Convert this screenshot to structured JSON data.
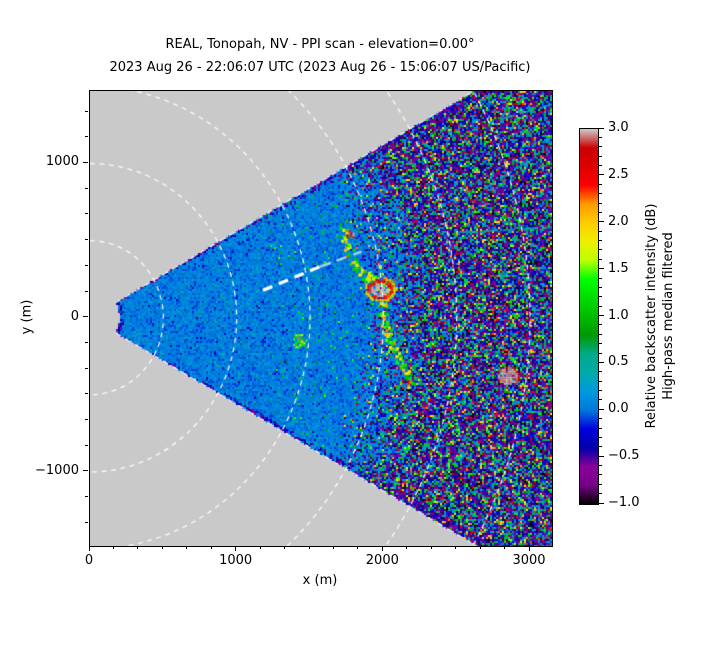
{
  "title": {
    "line1": "REAL, Tonopah, NV - PPI scan - elevation=0.00°",
    "line2": "2023 Aug 26 - 22:06:07 UTC (2023 Aug 26 - 15:06:07 US/Pacific)"
  },
  "chart_data": {
    "type": "heatmap",
    "subtype": "lidar-ppi-sector-scan",
    "xlabel": "x (m)",
    "ylabel": "y (m)",
    "xlim": [
      0,
      3150
    ],
    "ylim": [
      -1480,
      1470
    ],
    "x_ticks": [
      0,
      1000,
      2000,
      3000
    ],
    "x_tick_labels": [
      "0",
      "1000",
      "2000",
      "3000"
    ],
    "y_ticks": [
      1000,
      0,
      -1000
    ],
    "y_tick_labels": [
      "1000",
      "0",
      "−1000"
    ],
    "minor_tick_step_m": 166.6667,
    "plot_bg_color": "#c9c9c9",
    "sector": {
      "center_m": [
        0,
        0
      ],
      "azimuth_deg": [
        -29.3,
        29.3
      ],
      "min_range_m": 200,
      "max_range_m": 3500
    },
    "range_rings_m": [
      500,
      1000,
      1500,
      2000,
      2500,
      3000
    ],
    "ring_style": {
      "color": "#ffffff",
      "dash": [
        5,
        4.5
      ],
      "width": 1.3
    },
    "noise_model": {
      "clean_mean_db": 0.04,
      "clean_sd_db": 0.12,
      "speck_cyan_prob": 0.045,
      "speck_cyan_db": [
        0.28,
        0.58
      ],
      "noise_onset_range_m": 1830,
      "noise_full_range_m": 2350
    },
    "features": [
      {
        "type": "dashed-annotation",
        "from_m": [
          1180,
          178
        ],
        "to_m": [
          1565,
          330
        ],
        "to2_m": [
          1850,
          428
        ],
        "color": "#ffffff"
      },
      {
        "type": "plume-path",
        "points_m": [
          [
            1720,
            620
          ],
          [
            1745,
            480
          ],
          [
            1790,
            360
          ],
          [
            1868,
            282
          ],
          [
            1955,
            235
          ],
          [
            2020,
            168
          ],
          [
            1992,
            60
          ],
          [
            2012,
            -60
          ],
          [
            2062,
            -180
          ],
          [
            2130,
            -320
          ],
          [
            2195,
            -430
          ]
        ],
        "width_m": 55,
        "value_db": [
          0.9,
          2.1
        ]
      },
      {
        "type": "bright-core",
        "center_m": [
          1975,
          190
        ],
        "rx_m": 88,
        "ry_m": 66,
        "core_db": 3.0,
        "edge_db": [
          2.3,
          2.9
        ],
        "ring_db": [
          1.6,
          2.2
        ]
      },
      {
        "type": "spot",
        "center_m": [
          1765,
          545
        ],
        "r_m": 30,
        "value_db": [
          2.2,
          3.0
        ]
      },
      {
        "type": "blob",
        "center_m": [
          1420,
          -150
        ],
        "r_m": 48,
        "value_db": [
          1.1,
          1.8
        ],
        "highlight_db": [
          2.1,
          2.9
        ]
      },
      {
        "type": "white-blob",
        "center_m": [
          2845,
          -372
        ],
        "rx_m": 78,
        "ry_m": 62,
        "value_db": [
          2.9,
          3.0
        ]
      },
      {
        "type": "streak",
        "from_m": [
          2540,
          555
        ],
        "to_m": [
          2900,
          572
        ],
        "value_db": 0.33
      },
      {
        "type": "streak",
        "from_m": [
          2950,
          575
        ],
        "to_m": [
          3150,
          585
        ],
        "value_db": 0.33
      },
      {
        "type": "streak",
        "from_m": [
          2800,
          1285
        ],
        "to_m": [
          3210,
          1400
        ],
        "value_db": 0.35
      },
      {
        "type": "streak",
        "from_m": [
          2680,
          830
        ],
        "to_m": [
          3040,
          1045
        ],
        "value_db": 0.35
      }
    ],
    "colorbar": {
      "label_line1": "Relative backscatter intensity (dB)",
      "label_line2": "High-pass median filtered",
      "vmin": -1.0,
      "vmax": 3.0,
      "ticks": [
        3.0,
        2.5,
        2.0,
        1.5,
        1.0,
        0.5,
        0.0,
        -0.5,
        -1.0
      ],
      "tick_labels": [
        "3.0",
        "2.5",
        "2.0",
        "1.5",
        "1.0",
        "0.5",
        "0.0",
        "−0.5",
        "−1.0"
      ],
      "minor_tick_step_db": 0.1,
      "colormap": "nipy_spectral",
      "stops": [
        [
          0.0,
          "#000000"
        ],
        [
          0.05,
          "#770088"
        ],
        [
          0.1,
          "#880099"
        ],
        [
          0.15,
          "#0000aa"
        ],
        [
          0.2,
          "#0000dd"
        ],
        [
          0.25,
          "#0077dd"
        ],
        [
          0.3,
          "#0099dd"
        ],
        [
          0.35,
          "#00aaaa"
        ],
        [
          0.4,
          "#00aa88"
        ],
        [
          0.45,
          "#009900"
        ],
        [
          0.5,
          "#00bb00"
        ],
        [
          0.55,
          "#00dd00"
        ],
        [
          0.6,
          "#00ff00"
        ],
        [
          0.65,
          "#bbff00"
        ],
        [
          0.7,
          "#eeee00"
        ],
        [
          0.75,
          "#ffcc00"
        ],
        [
          0.8,
          "#ff9900"
        ],
        [
          0.85,
          "#ff0000"
        ],
        [
          0.9,
          "#dd0000"
        ],
        [
          0.95,
          "#cc0000"
        ],
        [
          1.0,
          "#cccccc"
        ]
      ]
    }
  }
}
